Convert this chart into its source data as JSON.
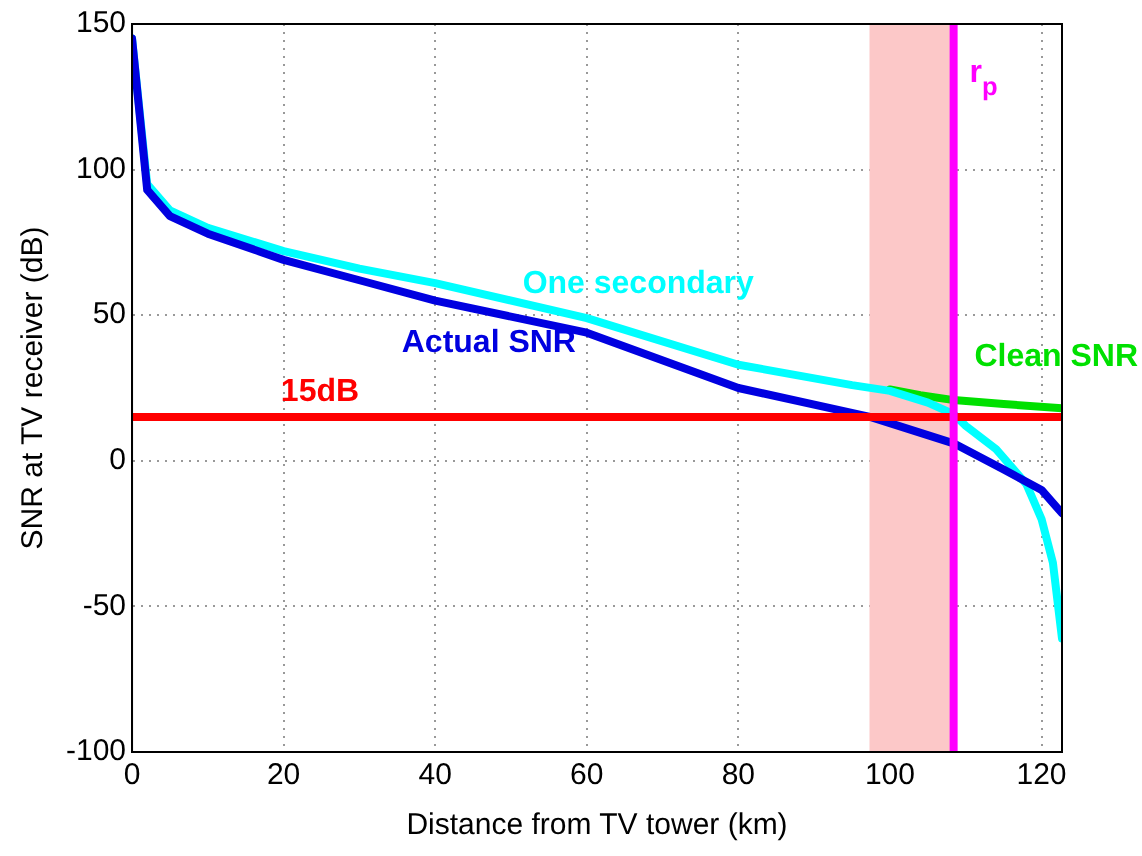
{
  "chart_data": {
    "type": "line",
    "xlabel": "Distance from TV tower (km)",
    "ylabel": "SNR at TV receiver (dB)",
    "xlim": [
      0,
      122.7
    ],
    "xticks": [
      0,
      20,
      40,
      60,
      80,
      100,
      120
    ],
    "ylim": [
      -100,
      150
    ],
    "yticks": [
      -100,
      -50,
      0,
      50,
      100,
      150
    ],
    "grid": true,
    "legend": false,
    "marker": "none",
    "line_style": "solid",
    "series": [
      {
        "name": "Clean SNR",
        "color": "#00e000",
        "x": [
          100,
          104,
          108,
          115,
          122.7
        ],
        "values": [
          24.5,
          22.5,
          21,
          19.5,
          18
        ]
      },
      {
        "name": "One secondary",
        "color": "#00ffff",
        "x": [
          0,
          2,
          5,
          10,
          20,
          30,
          40,
          60,
          80,
          95,
          100,
          105,
          108.4,
          110,
          114,
          118,
          120,
          121.5,
          122.7
        ],
        "values": [
          145,
          95,
          86,
          80,
          72,
          66,
          61,
          49,
          33,
          26,
          24,
          20,
          16,
          12,
          4,
          -8,
          -20,
          -35,
          -61
        ]
      },
      {
        "name": "Actual SNR",
        "color": "#0000e0",
        "x": [
          0,
          2,
          5,
          10,
          20,
          30,
          40,
          60,
          80,
          97.5,
          108.4,
          115,
          120,
          122.7
        ],
        "values": [
          145,
          93,
          84,
          78,
          69,
          62,
          55,
          44,
          25,
          15,
          6,
          -3,
          -10,
          -18
        ]
      }
    ],
    "ref_lines": [
      {
        "axis": "y",
        "value": 15,
        "label": "15dB",
        "color": "#ff0000"
      },
      {
        "axis": "x",
        "value": 108.4,
        "label": "r$_{p}$",
        "color": "#ff00ff"
      }
    ],
    "bands": [
      {
        "axis": "x",
        "from": 97.3,
        "to": 108.4,
        "color": "#fcc8c8"
      }
    ]
  }
}
